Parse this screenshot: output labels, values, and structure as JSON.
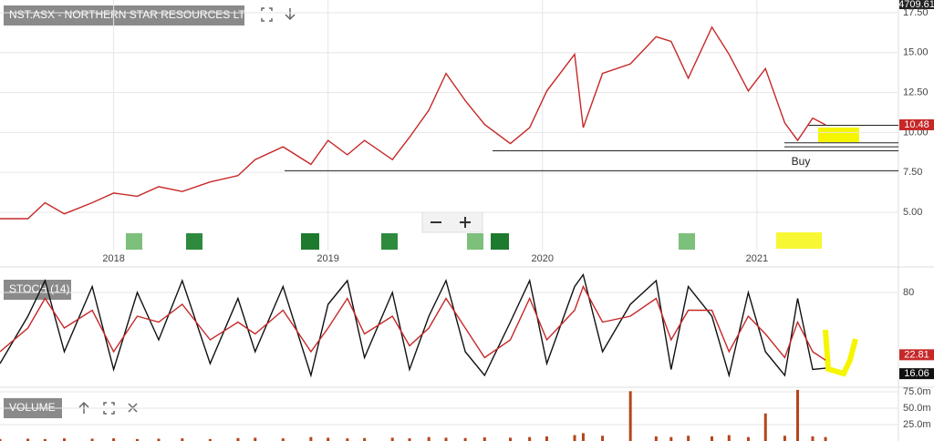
{
  "chart_data": [
    {
      "type": "line",
      "title": "NST.ASX - NORTHERN STAR RESOURCES LTD",
      "price_tag": "4709.61",
      "annotation": "Buy",
      "x": [
        2017.47,
        2017.6,
        2017.68,
        2017.77,
        2017.9,
        2018.0,
        2018.11,
        2018.21,
        2018.32,
        2018.45,
        2018.58,
        2018.66,
        2018.79,
        2018.92,
        2019.0,
        2019.09,
        2019.17,
        2019.3,
        2019.38,
        2019.47,
        2019.55,
        2019.64,
        2019.73,
        2019.85,
        2019.94,
        2020.02,
        2020.15,
        2020.19,
        2020.28,
        2020.41,
        2020.53,
        2020.6,
        2020.68,
        2020.79,
        2020.87,
        2020.96,
        2021.04,
        2021.13,
        2021.19,
        2021.26,
        2021.32
      ],
      "series": [
        {
          "color": "#c62828",
          "values": [
            4.6,
            4.6,
            5.6,
            4.9,
            5.6,
            6.2,
            6.0,
            6.6,
            6.3,
            6.9,
            7.3,
            8.3,
            9.1,
            8.0,
            9.5,
            8.6,
            9.5,
            8.3,
            9.7,
            11.4,
            13.7,
            12.0,
            10.5,
            9.3,
            10.3,
            12.6,
            14.9,
            10.3,
            13.7,
            14.3,
            16.0,
            15.7,
            13.4,
            16.6,
            14.9,
            12.6,
            14.0,
            10.6,
            9.5,
            10.9,
            10.48
          ]
        }
      ],
      "levels": [
        7.6,
        8.85,
        9.1,
        9.35,
        10.45
      ],
      "xlim": [
        2017.47,
        2021.66
      ],
      "xticks": [
        2018,
        2019,
        2020,
        2021
      ],
      "ylim": [
        2.6,
        18.3
      ],
      "yticks": [
        {
          "value": 5,
          "label": "5.00"
        },
        {
          "value": 7.5,
          "label": "7.50"
        },
        {
          "value": 10,
          "label": "10.00"
        },
        {
          "value": 12.5,
          "label": "12.50"
        },
        {
          "value": 15,
          "label": "15.00"
        },
        {
          "value": 17.5,
          "label": "17.50"
        }
      ],
      "grid": true
    },
    {
      "type": "line",
      "title": "STOCH (14)",
      "x": [
        2017.47,
        2017.6,
        2017.68,
        2017.77,
        2017.9,
        2018.0,
        2018.11,
        2018.21,
        2018.32,
        2018.45,
        2018.58,
        2018.66,
        2018.79,
        2018.92,
        2019.0,
        2019.09,
        2019.17,
        2019.3,
        2019.38,
        2019.47,
        2019.55,
        2019.64,
        2019.73,
        2019.85,
        2019.94,
        2020.02,
        2020.15,
        2020.19,
        2020.28,
        2020.41,
        2020.53,
        2020.6,
        2020.68,
        2020.79,
        2020.87,
        2020.96,
        2021.04,
        2021.13,
        2021.19,
        2021.26,
        2021.32
      ],
      "series": [
        {
          "color": "#111111",
          "values": [
            20,
            60,
            90,
            30,
            85,
            15,
            80,
            40,
            90,
            20,
            75,
            30,
            85,
            10,
            70,
            90,
            25,
            80,
            15,
            60,
            90,
            30,
            10,
            55,
            90,
            20,
            85,
            95,
            30,
            70,
            90,
            15,
            85,
            60,
            10,
            80,
            30,
            10,
            75,
            15,
            16.06
          ]
        },
        {
          "color": "#c62828",
          "values": [
            30,
            50,
            75,
            50,
            65,
            30,
            60,
            55,
            70,
            40,
            55,
            45,
            65,
            30,
            50,
            75,
            45,
            60,
            35,
            50,
            75,
            50,
            25,
            40,
            75,
            40,
            65,
            85,
            55,
            60,
            75,
            40,
            65,
            65,
            30,
            60,
            45,
            25,
            55,
            30,
            22.81
          ]
        }
      ],
      "xlim": [
        2017.47,
        2021.66
      ],
      "ylim": [
        0,
        100
      ],
      "yticks": [
        80
      ],
      "grid": true
    },
    {
      "type": "bar",
      "title": "VOLUME",
      "color": "#b5451b",
      "x": [
        2017.47,
        2017.6,
        2017.68,
        2017.77,
        2017.9,
        2018.0,
        2018.11,
        2018.21,
        2018.32,
        2018.45,
        2018.58,
        2018.66,
        2018.79,
        2018.92,
        2019.0,
        2019.09,
        2019.17,
        2019.3,
        2019.38,
        2019.47,
        2019.55,
        2019.64,
        2019.73,
        2019.85,
        2019.94,
        2020.02,
        2020.15,
        2020.19,
        2020.28,
        2020.41,
        2020.53,
        2020.6,
        2020.68,
        2020.79,
        2020.87,
        2020.96,
        2021.04,
        2021.13,
        2021.19,
        2021.26,
        2021.32
      ],
      "values": [
        3000000,
        3500000,
        3000000,
        4000000,
        3500000,
        4000000,
        3000000,
        3500000,
        4000000,
        3000000,
        4500000,
        5000000,
        4000000,
        6000000,
        5000000,
        4000000,
        4500000,
        5000000,
        4000000,
        6000000,
        5000000,
        4500000,
        5500000,
        5000000,
        6000000,
        7000000,
        9000000,
        12000000,
        8000000,
        76000000,
        7000000,
        6000000,
        8000000,
        7000000,
        9000000,
        6000000,
        42000000,
        8000000,
        78000000,
        7000000,
        6000000
      ],
      "xlim": [
        2017.47,
        2021.66
      ],
      "ylim": [
        0,
        82000000
      ],
      "yticks": [
        {
          "value": 25000000,
          "label": "25.0m"
        },
        {
          "value": 50000000,
          "label": "50.0m"
        },
        {
          "value": 75000000,
          "label": "75.0m"
        }
      ],
      "grid": true
    }
  ]
}
